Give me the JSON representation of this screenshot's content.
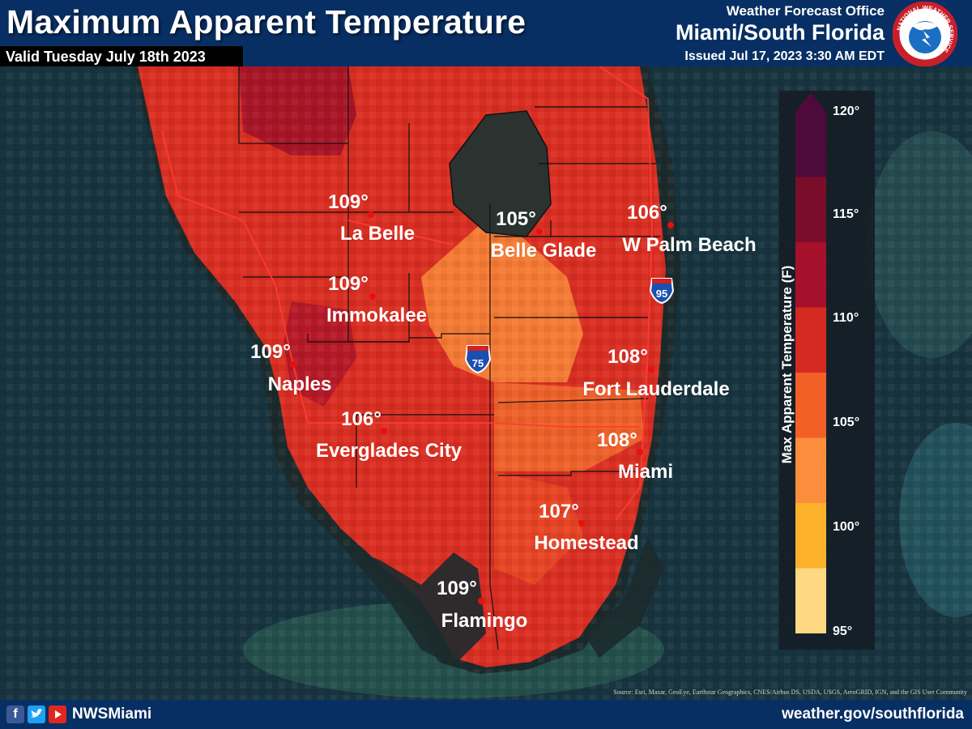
{
  "header": {
    "title": "Maximum Apparent Temperature",
    "valid": "Valid Tuesday July 18th 2023",
    "office_line1": "Weather Forecast Office",
    "office_line2": "Miami/South Florida",
    "issued": "Issued Jul 17, 2023 3:30 AM EDT",
    "logo_text": "NATIONAL WEATHER SERVICE"
  },
  "cities": [
    {
      "name": "La Belle",
      "temp": "109°"
    },
    {
      "name": "Belle Glade",
      "temp": "105°"
    },
    {
      "name": "W Palm Beach",
      "temp": "106°"
    },
    {
      "name": "Immokalee",
      "temp": "109°"
    },
    {
      "name": "Naples",
      "temp": "109°"
    },
    {
      "name": "Fort Lauderdale",
      "temp": "108°"
    },
    {
      "name": "Everglades City",
      "temp": "106°"
    },
    {
      "name": "Miami",
      "temp": "108°"
    },
    {
      "name": "Homestead",
      "temp": "107°"
    },
    {
      "name": "Flamingo",
      "temp": "109°"
    }
  ],
  "highways": {
    "i75": "75",
    "i95": "95"
  },
  "legend": {
    "title": "Max Apparent Temperature (F)",
    "ticks": [
      "120°",
      "115°",
      "110°",
      "105°",
      "100°",
      "95°"
    ],
    "colors": [
      "#4d0a3a",
      "#7a0d2a",
      "#a5112a",
      "#d42a22",
      "#f26028",
      "#fb8d3c",
      "#fdb22c",
      "#fed882"
    ]
  },
  "colors": {
    "header_bg": "#082f63",
    "land_hot": "#d92e22",
    "land_warm": "#f47a35",
    "water": "#16333d"
  },
  "footer": {
    "handle": "NWSMiami",
    "website": "weather.gov/southflorida",
    "social_icons": [
      "facebook-icon",
      "twitter-icon",
      "youtube-icon"
    ],
    "source": "Source: Esri, Maxar, GeoEye, Earthstar Geographics, CNES/Airbus DS, USDA, USGS, AeroGRID, IGN, and the GIS User Community"
  }
}
